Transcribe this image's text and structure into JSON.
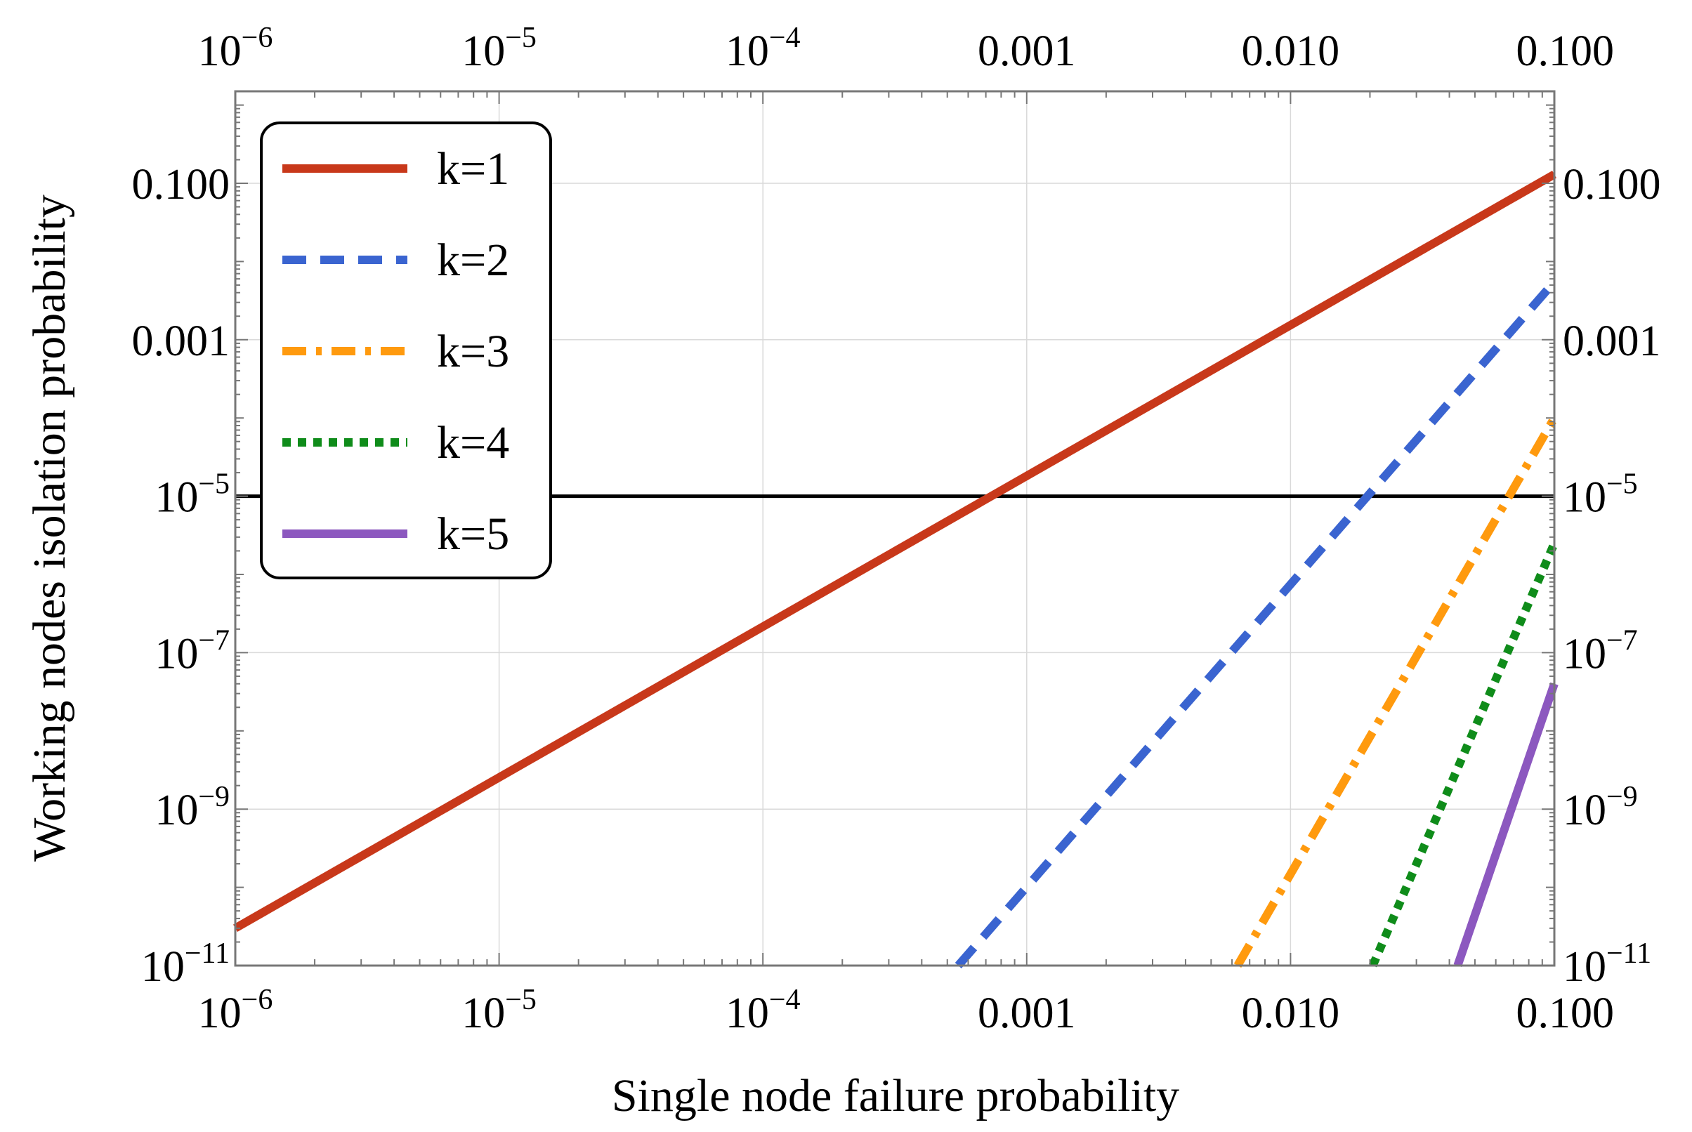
{
  "chart_data": {
    "type": "line",
    "title": "",
    "xlabel": "Single node failure probability",
    "ylabel": "Working nodes isolation probability",
    "xscale": "log",
    "yscale": "log",
    "xlim": [
      1e-06,
      0.1
    ],
    "ylim": [
      1e-11,
      1.5
    ],
    "x_ticks": [
      {
        "value": 1e-06,
        "base": "10",
        "exp": "−6"
      },
      {
        "value": 1e-05,
        "base": "10",
        "exp": "−5"
      },
      {
        "value": 0.0001,
        "base": "10",
        "exp": "−4"
      },
      {
        "value": 0.001,
        "text": "0.001"
      },
      {
        "value": 0.01,
        "text": "0.010"
      },
      {
        "value": 0.1,
        "text": "0.100"
      }
    ],
    "y_ticks": [
      {
        "value": 1e-11,
        "base": "10",
        "exp": "−11"
      },
      {
        "value": 1e-09,
        "base": "10",
        "exp": "−9"
      },
      {
        "value": 1e-07,
        "base": "10",
        "exp": "−7"
      },
      {
        "value": 1e-05,
        "base": "10",
        "exp": "−5"
      },
      {
        "value": 0.001,
        "text": "0.001"
      },
      {
        "value": 0.1,
        "text": "0.100"
      }
    ],
    "threshold": {
      "y": 1e-05,
      "color": "#000000"
    },
    "legend_position": "top-left",
    "series": [
      {
        "name": "k=1",
        "color": "#C8381A",
        "dash": "solid",
        "x": [
          1e-06,
          0.1
        ],
        "y": [
          3e-11,
          0.13
        ]
      },
      {
        "name": "k=2",
        "color": "#3A64D0",
        "dash": "dashed",
        "x": [
          0.00055,
          0.1
        ],
        "y": [
          1e-11,
          0.0055
        ]
      },
      {
        "name": "k=3",
        "color": "#FF9A0E",
        "dash": "dashdot",
        "x": [
          0.0063,
          0.1
        ],
        "y": [
          1e-11,
          0.0001
        ]
      },
      {
        "name": "k=4",
        "color": "#0F8C1A",
        "dash": "dotted",
        "x": [
          0.0205,
          0.1
        ],
        "y": [
          1e-11,
          2.5e-06
        ]
      },
      {
        "name": "k=5",
        "color": "#8C58BF",
        "dash": "solid",
        "x": [
          0.043,
          0.1
        ],
        "y": [
          1e-11,
          4e-08
        ]
      }
    ]
  }
}
